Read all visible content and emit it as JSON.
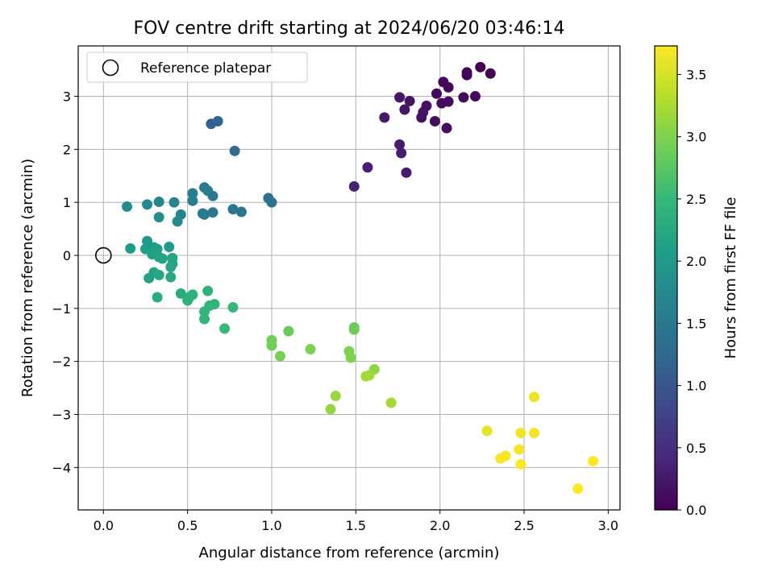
{
  "chart_data": {
    "type": "scatter",
    "title": "FOV centre drift starting at 2024/06/20 03:46:14",
    "xlabel": "Angular distance from reference (arcmin)",
    "ylabel": "Rotation from reference (arcmin)",
    "xlim": [
      -0.15,
      3.07
    ],
    "ylim": [
      -4.8,
      3.95
    ],
    "x_ticks": [
      0.0,
      0.5,
      1.0,
      1.5,
      2.0,
      2.5,
      3.0
    ],
    "x_tick_labels": [
      "0.0",
      "0.5",
      "1.0",
      "1.5",
      "2.0",
      "2.5",
      "3.0"
    ],
    "y_ticks": [
      -4,
      -3,
      -2,
      -1,
      0,
      1,
      2,
      3
    ],
    "y_tick_labels": [
      "−4",
      "−3",
      "−2",
      "−1",
      "0",
      "1",
      "2",
      "3"
    ],
    "grid": true,
    "legend": {
      "placement": "top-left",
      "entries": [
        {
          "label": "Reference platepar",
          "marker": "open-circle"
        }
      ]
    },
    "reference_point": {
      "x": 0.0,
      "y": 0.0
    },
    "colorbar": {
      "label": "Hours from first FF file",
      "colormap": "viridis",
      "range": [
        0.0,
        3.73
      ],
      "ticks": [
        0.0,
        0.5,
        1.0,
        1.5,
        2.0,
        2.5,
        3.0,
        3.5
      ],
      "tick_labels": [
        "0.0",
        "0.5",
        "1.0",
        "1.5",
        "2.0",
        "2.5",
        "3.0",
        "3.5"
      ]
    },
    "points": [
      {
        "x": 2.24,
        "y": 3.55,
        "h": 0.02
      },
      {
        "x": 2.16,
        "y": 3.45,
        "h": 0.04
      },
      {
        "x": 2.3,
        "y": 3.43,
        "h": 0.03
      },
      {
        "x": 2.16,
        "y": 3.4,
        "h": 0.05
      },
      {
        "x": 2.02,
        "y": 3.27,
        "h": 0.06
      },
      {
        "x": 2.05,
        "y": 3.17,
        "h": 0.08
      },
      {
        "x": 1.98,
        "y": 3.05,
        "h": 0.1
      },
      {
        "x": 2.21,
        "y": 3.0,
        "h": 0.07
      },
      {
        "x": 2.14,
        "y": 2.98,
        "h": 0.09
      },
      {
        "x": 2.05,
        "y": 2.9,
        "h": 0.11
      },
      {
        "x": 2.01,
        "y": 2.87,
        "h": 0.12
      },
      {
        "x": 1.76,
        "y": 2.98,
        "h": 0.22
      },
      {
        "x": 1.82,
        "y": 2.91,
        "h": 0.2
      },
      {
        "x": 1.92,
        "y": 2.82,
        "h": 0.18
      },
      {
        "x": 1.9,
        "y": 2.7,
        "h": 0.19
      },
      {
        "x": 1.79,
        "y": 2.75,
        "h": 0.21
      },
      {
        "x": 1.89,
        "y": 2.6,
        "h": 0.17
      },
      {
        "x": 1.67,
        "y": 2.6,
        "h": 0.25
      },
      {
        "x": 1.97,
        "y": 2.53,
        "h": 0.14
      },
      {
        "x": 2.04,
        "y": 2.4,
        "h": 0.13
      },
      {
        "x": 1.76,
        "y": 2.09,
        "h": 0.27
      },
      {
        "x": 1.77,
        "y": 1.93,
        "h": 0.3
      },
      {
        "x": 1.57,
        "y": 1.66,
        "h": 0.33
      },
      {
        "x": 1.8,
        "y": 1.56,
        "h": 0.29
      },
      {
        "x": 1.49,
        "y": 1.3,
        "h": 0.36
      },
      {
        "x": 0.64,
        "y": 2.48,
        "h": 1.18
      },
      {
        "x": 0.68,
        "y": 2.53,
        "h": 1.2
      },
      {
        "x": 0.78,
        "y": 1.97,
        "h": 1.28
      },
      {
        "x": 0.98,
        "y": 1.08,
        "h": 1.38
      },
      {
        "x": 1.0,
        "y": 1.0,
        "h": 1.4
      },
      {
        "x": 0.82,
        "y": 0.82,
        "h": 1.46
      },
      {
        "x": 0.77,
        "y": 0.87,
        "h": 1.48
      },
      {
        "x": 0.65,
        "y": 1.12,
        "h": 1.52
      },
      {
        "x": 0.6,
        "y": 1.28,
        "h": 1.54
      },
      {
        "x": 0.62,
        "y": 1.22,
        "h": 1.55
      },
      {
        "x": 0.53,
        "y": 1.17,
        "h": 1.58
      },
      {
        "x": 0.53,
        "y": 1.03,
        "h": 1.6
      },
      {
        "x": 0.65,
        "y": 0.81,
        "h": 1.5
      },
      {
        "x": 0.59,
        "y": 0.79,
        "h": 1.56
      },
      {
        "x": 0.6,
        "y": 0.77,
        "h": 1.57
      },
      {
        "x": 0.42,
        "y": 1.0,
        "h": 1.68
      },
      {
        "x": 0.33,
        "y": 1.01,
        "h": 1.72
      },
      {
        "x": 0.26,
        "y": 0.96,
        "h": 1.76
      },
      {
        "x": 0.14,
        "y": 0.92,
        "h": 1.8
      },
      {
        "x": 0.33,
        "y": 0.72,
        "h": 1.84
      },
      {
        "x": 0.46,
        "y": 0.77,
        "h": 1.7
      },
      {
        "x": 0.44,
        "y": 0.64,
        "h": 1.74
      },
      {
        "x": 0.16,
        "y": 0.13,
        "h": 2.05
      },
      {
        "x": 0.26,
        "y": 0.27,
        "h": 2.0
      },
      {
        "x": 0.25,
        "y": 0.12,
        "h": 2.08
      },
      {
        "x": 0.3,
        "y": 0.15,
        "h": 2.05
      },
      {
        "x": 0.32,
        "y": 0.12,
        "h": 2.1
      },
      {
        "x": 0.29,
        "y": 0.02,
        "h": 2.12
      },
      {
        "x": 0.33,
        "y": -0.03,
        "h": 2.15
      },
      {
        "x": 0.35,
        "y": -0.06,
        "h": 2.16
      },
      {
        "x": 0.39,
        "y": 0.16,
        "h": 2.02
      },
      {
        "x": 0.41,
        "y": -0.05,
        "h": 2.18
      },
      {
        "x": 0.41,
        "y": -0.16,
        "h": 2.2
      },
      {
        "x": 0.4,
        "y": -0.22,
        "h": 2.22
      },
      {
        "x": 0.3,
        "y": -0.32,
        "h": 2.18
      },
      {
        "x": 0.33,
        "y": -0.37,
        "h": 2.2
      },
      {
        "x": 0.27,
        "y": -0.43,
        "h": 2.14
      },
      {
        "x": 0.4,
        "y": -0.41,
        "h": 2.24
      },
      {
        "x": 0.32,
        "y": -0.79,
        "h": 2.28
      },
      {
        "x": 0.46,
        "y": -0.72,
        "h": 2.3
      },
      {
        "x": 0.53,
        "y": -0.74,
        "h": 2.35
      },
      {
        "x": 0.5,
        "y": -0.85,
        "h": 2.38
      },
      {
        "x": 0.51,
        "y": -0.79,
        "h": 2.36
      },
      {
        "x": 0.62,
        "y": -0.67,
        "h": 2.4
      },
      {
        "x": 0.63,
        "y": -0.95,
        "h": 2.42
      },
      {
        "x": 0.66,
        "y": -0.92,
        "h": 2.43
      },
      {
        "x": 0.6,
        "y": -1.06,
        "h": 2.44
      },
      {
        "x": 0.6,
        "y": -1.2,
        "h": 2.45
      },
      {
        "x": 0.77,
        "y": -0.98,
        "h": 2.48
      },
      {
        "x": 0.72,
        "y": -1.38,
        "h": 2.52
      },
      {
        "x": 1.0,
        "y": -1.6,
        "h": 2.9
      },
      {
        "x": 1.0,
        "y": -1.7,
        "h": 2.92
      },
      {
        "x": 1.1,
        "y": -1.43,
        "h": 2.86
      },
      {
        "x": 1.05,
        "y": -1.9,
        "h": 2.95
      },
      {
        "x": 1.23,
        "y": -1.77,
        "h": 2.97
      },
      {
        "x": 1.49,
        "y": -1.36,
        "h": 2.88
      },
      {
        "x": 1.49,
        "y": -1.4,
        "h": 2.89
      },
      {
        "x": 1.46,
        "y": -1.81,
        "h": 2.98
      },
      {
        "x": 1.47,
        "y": -1.93,
        "h": 3.0
      },
      {
        "x": 1.61,
        "y": -2.15,
        "h": 3.1
      },
      {
        "x": 1.58,
        "y": -2.26,
        "h": 3.18
      },
      {
        "x": 1.56,
        "y": -2.28,
        "h": 3.2
      },
      {
        "x": 1.38,
        "y": -2.65,
        "h": 3.15
      },
      {
        "x": 1.35,
        "y": -2.9,
        "h": 3.12
      },
      {
        "x": 1.71,
        "y": -2.78,
        "h": 3.22
      },
      {
        "x": 2.56,
        "y": -2.67,
        "h": 3.62
      },
      {
        "x": 2.28,
        "y": -3.31,
        "h": 3.6
      },
      {
        "x": 2.48,
        "y": -3.35,
        "h": 3.64
      },
      {
        "x": 2.56,
        "y": -3.35,
        "h": 3.66
      },
      {
        "x": 2.47,
        "y": -3.66,
        "h": 3.68
      },
      {
        "x": 2.39,
        "y": -3.78,
        "h": 3.66
      },
      {
        "x": 2.36,
        "y": -3.83,
        "h": 3.7
      },
      {
        "x": 2.48,
        "y": -3.94,
        "h": 3.71
      },
      {
        "x": 2.91,
        "y": -3.88,
        "h": 3.72
      },
      {
        "x": 2.82,
        "y": -4.4,
        "h": 3.73
      }
    ]
  }
}
